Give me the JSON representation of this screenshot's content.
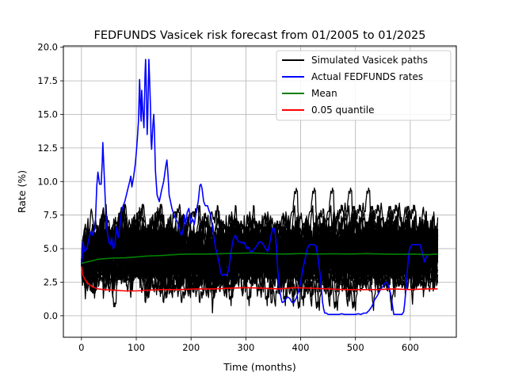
{
  "chart_data": {
    "type": "line",
    "title": "FEDFUNDS Vasicek risk forecast from 01/2005 to 01/2025",
    "xlabel": "Time (months)",
    "ylabel": "Rate (%)",
    "xlim": [
      -33,
      684
    ],
    "ylim": [
      -1.6,
      20.1
    ],
    "xticks": [
      0,
      100,
      200,
      300,
      400,
      500,
      600
    ],
    "yticks": [
      0.0,
      2.5,
      5.0,
      7.5,
      10.0,
      12.5,
      15.0,
      17.5,
      20.0
    ],
    "ytick_labels": [
      "0.0",
      "2.5",
      "5.0",
      "7.5",
      "10.0",
      "12.5",
      "15.0",
      "17.5",
      "20.0"
    ],
    "grid": true,
    "legend_position": "top-right",
    "legend": [
      {
        "label": "Simulated Vasicek paths",
        "color": "#000000"
      },
      {
        "label": "Actual FEDFUNDS rates",
        "color": "#0000ff"
      },
      {
        "label": "Mean",
        "color": "#008000"
      },
      {
        "label": "0.05 quantile",
        "color": "#ff0000"
      }
    ],
    "simulation": {
      "paths": 40,
      "months": 650,
      "r0": 3.9,
      "long_run_mean": 4.6,
      "band_low": 0.0,
      "band_high": 9.5,
      "min_observed": -0.7,
      "max_observed": 11.1
    },
    "series": [
      {
        "name": "Actual FEDFUNDS rates",
        "color": "#0000ff",
        "points": [
          [
            0,
            3.8
          ],
          [
            3,
            5.5
          ],
          [
            6,
            4.8
          ],
          [
            10,
            5.0
          ],
          [
            15,
            6.0
          ],
          [
            18,
            6.3
          ],
          [
            20,
            6.0
          ],
          [
            25,
            6.5
          ],
          [
            28,
            9.7
          ],
          [
            30,
            10.7
          ],
          [
            33,
            9.8
          ],
          [
            36,
            9.8
          ],
          [
            38,
            11.5
          ],
          [
            39,
            12.9
          ],
          [
            41,
            11.0
          ],
          [
            43,
            9.0
          ],
          [
            45,
            7.0
          ],
          [
            48,
            6.0
          ],
          [
            50,
            5.5
          ],
          [
            53,
            5.3
          ],
          [
            55,
            5.8
          ],
          [
            58,
            5.0
          ],
          [
            61,
            5.3
          ],
          [
            64,
            6.6
          ],
          [
            67,
            5.8
          ],
          [
            70,
            6.6
          ],
          [
            73,
            7.7
          ],
          [
            76,
            8.2
          ],
          [
            79,
            8.5
          ],
          [
            82,
            9.0
          ],
          [
            85,
            9.5
          ],
          [
            88,
            10.0
          ],
          [
            90,
            10.4
          ],
          [
            92,
            9.6
          ],
          [
            95,
            10.3
          ],
          [
            98,
            11.2
          ],
          [
            100,
            12.1
          ],
          [
            102,
            13.2
          ],
          [
            104,
            14.5
          ],
          [
            105,
            16.0
          ],
          [
            106,
            17.6
          ],
          [
            107,
            16.6
          ],
          [
            108,
            15.0
          ],
          [
            109,
            14.5
          ],
          [
            110,
            16.8
          ],
          [
            112,
            15.2
          ],
          [
            114,
            14.0
          ],
          [
            116,
            18.0
          ],
          [
            117,
            19.1
          ],
          [
            118,
            17.5
          ],
          [
            119,
            15.5
          ],
          [
            120,
            13.5
          ],
          [
            121,
            14.8
          ],
          [
            123,
            19.1
          ],
          [
            124,
            18.0
          ],
          [
            126,
            15.5
          ],
          [
            127,
            13.0
          ],
          [
            128,
            12.4
          ],
          [
            130,
            14.0
          ],
          [
            131,
            14.6
          ],
          [
            132,
            15.0
          ],
          [
            133,
            14.0
          ],
          [
            135,
            10.8
          ],
          [
            138,
            9.0
          ],
          [
            142,
            8.5
          ],
          [
            146,
            9.3
          ],
          [
            150,
            10.0
          ],
          [
            154,
            11.2
          ],
          [
            156,
            11.6
          ],
          [
            158,
            10.5
          ],
          [
            160,
            9.0
          ],
          [
            165,
            8.0
          ],
          [
            170,
            7.4
          ],
          [
            175,
            7.0
          ],
          [
            178,
            6.5
          ],
          [
            180,
            6.2
          ],
          [
            183,
            6.0
          ],
          [
            186,
            6.5
          ],
          [
            188,
            7.5
          ],
          [
            190,
            6.8
          ],
          [
            193,
            7.7
          ],
          [
            196,
            8.0
          ],
          [
            200,
            6.9
          ],
          [
            203,
            7.2
          ],
          [
            206,
            6.8
          ],
          [
            210,
            7.9
          ],
          [
            213,
            8.5
          ],
          [
            216,
            9.7
          ],
          [
            218,
            9.8
          ],
          [
            220,
            9.5
          ],
          [
            223,
            8.5
          ],
          [
            226,
            8.2
          ],
          [
            230,
            8.2
          ],
          [
            233,
            7.8
          ],
          [
            236,
            7.5
          ],
          [
            239,
            6.5
          ],
          [
            242,
            5.8
          ],
          [
            245,
            5.0
          ],
          [
            248,
            4.5
          ],
          [
            251,
            4.0
          ],
          [
            254,
            3.2
          ],
          [
            257,
            3.0
          ],
          [
            260,
            3.1
          ],
          [
            263,
            3.0
          ],
          [
            266,
            3.1
          ],
          [
            269,
            3.5
          ],
          [
            272,
            4.5
          ],
          [
            275,
            5.3
          ],
          [
            278,
            5.8
          ],
          [
            281,
            6.0
          ],
          [
            284,
            5.7
          ],
          [
            287,
            5.5
          ],
          [
            290,
            5.5
          ],
          [
            293,
            5.4
          ],
          [
            296,
            5.5
          ],
          [
            299,
            5.3
          ],
          [
            302,
            5.0
          ],
          [
            305,
            5.1
          ],
          [
            308,
            4.8
          ],
          [
            312,
            4.8
          ],
          [
            316,
            5.0
          ],
          [
            320,
            5.2
          ],
          [
            324,
            5.5
          ],
          [
            328,
            5.5
          ],
          [
            332,
            5.3
          ],
          [
            336,
            5.0
          ],
          [
            340,
            4.8
          ],
          [
            343,
            5.3
          ],
          [
            346,
            6.0
          ],
          [
            349,
            6.5
          ],
          [
            352,
            6.5
          ],
          [
            354,
            6.0
          ],
          [
            356,
            5.0
          ],
          [
            358,
            3.5
          ],
          [
            360,
            2.5
          ],
          [
            362,
            1.8
          ],
          [
            364,
            1.4
          ],
          [
            366,
            1.0
          ],
          [
            368,
            1.0
          ],
          [
            372,
            1.2
          ],
          [
            376,
            1.4
          ],
          [
            380,
            1.3
          ],
          [
            384,
            1.0
          ],
          [
            388,
            1.0
          ],
          [
            392,
            1.3
          ],
          [
            396,
            1.8
          ],
          [
            400,
            2.5
          ],
          [
            404,
            3.5
          ],
          [
            408,
            4.2
          ],
          [
            412,
            5.0
          ],
          [
            416,
            5.3
          ],
          [
            420,
            5.3
          ],
          [
            424,
            5.3
          ],
          [
            428,
            5.2
          ],
          [
            431,
            4.5
          ],
          [
            434,
            3.5
          ],
          [
            436,
            3.0
          ],
          [
            438,
            2.0
          ],
          [
            440,
            1.0
          ],
          [
            442,
            0.5
          ],
          [
            444,
            0.2
          ],
          [
            447,
            0.2
          ],
          [
            450,
            0.1
          ],
          [
            455,
            0.1
          ],
          [
            460,
            0.1
          ],
          [
            465,
            0.1
          ],
          [
            470,
            0.1
          ],
          [
            475,
            0.15
          ],
          [
            480,
            0.1
          ],
          [
            485,
            0.1
          ],
          [
            490,
            0.1
          ],
          [
            495,
            0.1
          ],
          [
            500,
            0.1
          ],
          [
            505,
            0.15
          ],
          [
            510,
            0.1
          ],
          [
            515,
            0.2
          ],
          [
            520,
            0.2
          ],
          [
            525,
            0.4
          ],
          [
            530,
            0.7
          ],
          [
            535,
            1.2
          ],
          [
            540,
            1.5
          ],
          [
            545,
            1.9
          ],
          [
            550,
            2.2
          ],
          [
            553,
            2.4
          ],
          [
            556,
            2.5
          ],
          [
            559,
            2.4
          ],
          [
            562,
            2.0
          ],
          [
            565,
            1.5
          ],
          [
            568,
            0.6
          ],
          [
            570,
            0.1
          ],
          [
            575,
            0.1
          ],
          [
            580,
            0.1
          ],
          [
            585,
            0.1
          ],
          [
            588,
            0.3
          ],
          [
            590,
            1.0
          ],
          [
            592,
            2.0
          ],
          [
            594,
            3.0
          ],
          [
            596,
            4.0
          ],
          [
            598,
            4.8
          ],
          [
            600,
            5.1
          ],
          [
            603,
            5.3
          ],
          [
            608,
            5.3
          ],
          [
            613,
            5.3
          ],
          [
            618,
            5.3
          ],
          [
            620,
            5.0
          ],
          [
            623,
            4.5
          ],
          [
            626,
            4.0
          ],
          [
            628,
            4.3
          ],
          [
            630,
            4.4
          ],
          [
            632,
            4.3
          ]
        ]
      },
      {
        "name": "Mean",
        "color": "#008000",
        "points": [
          [
            0,
            3.9
          ],
          [
            10,
            4.0
          ],
          [
            20,
            4.1
          ],
          [
            30,
            4.2
          ],
          [
            40,
            4.25
          ],
          [
            60,
            4.3
          ],
          [
            80,
            4.32
          ],
          [
            100,
            4.38
          ],
          [
            120,
            4.45
          ],
          [
            150,
            4.5
          ],
          [
            180,
            4.58
          ],
          [
            200,
            4.6
          ],
          [
            230,
            4.6
          ],
          [
            260,
            4.63
          ],
          [
            290,
            4.65
          ],
          [
            310,
            4.68
          ],
          [
            340,
            4.62
          ],
          [
            370,
            4.6
          ],
          [
            400,
            4.63
          ],
          [
            430,
            4.6
          ],
          [
            460,
            4.62
          ],
          [
            490,
            4.6
          ],
          [
            520,
            4.63
          ],
          [
            550,
            4.6
          ],
          [
            580,
            4.58
          ],
          [
            610,
            4.6
          ],
          [
            630,
            4.55
          ],
          [
            650,
            4.6
          ]
        ]
      },
      {
        "name": "0.05 quantile",
        "color": "#ff0000",
        "points": [
          [
            0,
            3.7
          ],
          [
            2,
            3.1
          ],
          [
            5,
            2.8
          ],
          [
            10,
            2.5
          ],
          [
            15,
            2.3
          ],
          [
            20,
            2.15
          ],
          [
            30,
            2.0
          ],
          [
            40,
            1.95
          ],
          [
            60,
            1.9
          ],
          [
            80,
            1.85
          ],
          [
            100,
            1.85
          ],
          [
            120,
            1.9
          ],
          [
            150,
            1.95
          ],
          [
            180,
            1.95
          ],
          [
            210,
            2.0
          ],
          [
            240,
            2.0
          ],
          [
            270,
            2.05
          ],
          [
            300,
            2.1
          ],
          [
            330,
            2.05
          ],
          [
            360,
            2.0
          ],
          [
            390,
            2.1
          ],
          [
            420,
            2.05
          ],
          [
            450,
            2.0
          ],
          [
            480,
            1.95
          ],
          [
            510,
            1.95
          ],
          [
            540,
            1.95
          ],
          [
            570,
            2.0
          ],
          [
            600,
            1.95
          ],
          [
            630,
            2.0
          ],
          [
            650,
            2.0
          ]
        ]
      }
    ]
  }
}
